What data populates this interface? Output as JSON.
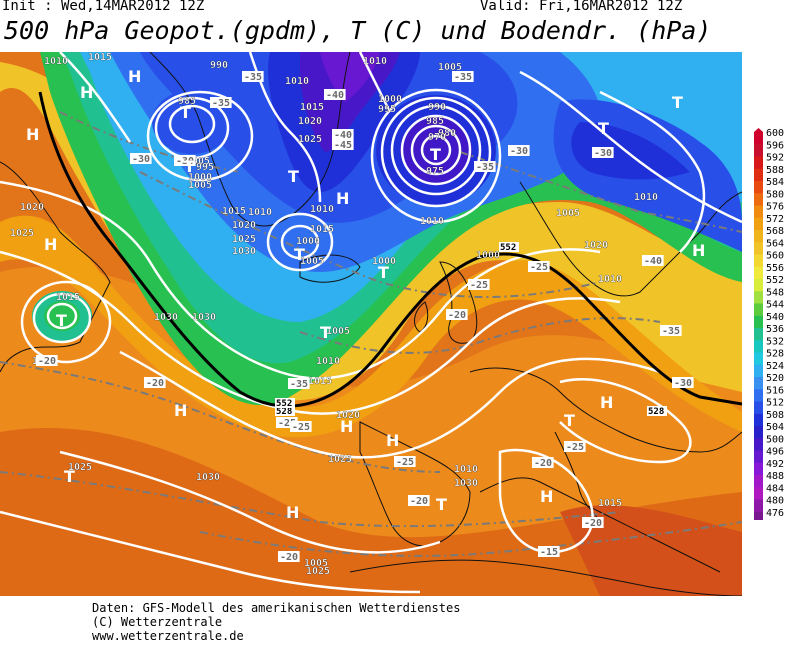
{
  "header": {
    "init": "Init : Wed,14MAR2012 12Z",
    "valid": "Valid: Fri,16MAR2012 12Z",
    "title": "500 hPa Geopot.(gpdm), T (C) und Bodendr. (hPa)"
  },
  "legend": {
    "levels": [
      "600",
      "596",
      "592",
      "588",
      "584",
      "580",
      "576",
      "572",
      "568",
      "564",
      "560",
      "556",
      "552",
      "548",
      "544",
      "540",
      "536",
      "532",
      "528",
      "524",
      "520",
      "516",
      "512",
      "508",
      "504",
      "500",
      "496",
      "492",
      "488",
      "484",
      "480",
      "476"
    ],
    "colors": [
      "#d0002c",
      "#c8102e",
      "#d81818",
      "#e02e12",
      "#e84a10",
      "#ee6a10",
      "#f08a10",
      "#f0a010",
      "#f0b41c",
      "#f0c428",
      "#f2d830",
      "#f0ea3c",
      "#d8ec3c",
      "#a0e040",
      "#5ccc3c",
      "#28c050",
      "#20c090",
      "#18c8c0",
      "#20c8e0",
      "#30b0f0",
      "#3890f0",
      "#3070f0",
      "#2850e8",
      "#2030d8",
      "#2820c8",
      "#4818c8",
      "#6818d0",
      "#8818d8",
      "#a018c8",
      "#b018c0",
      "#9018a8",
      "#7a1890"
    ]
  },
  "pressure_labels": [
    "1010",
    "1015",
    "990",
    "985",
    "1010",
    "1015",
    "1020",
    "1025",
    "1010",
    "1005",
    "1000",
    "995",
    "990",
    "985",
    "980",
    "975",
    "970",
    "1005",
    "1000",
    "1005",
    "1010",
    "1015",
    "1020",
    "1025",
    "1030",
    "995",
    "1000",
    "1005",
    "1010",
    "1015",
    "1010",
    "1020",
    "1025",
    "1015",
    "1030",
    "1025",
    "1030",
    "1025",
    "1030",
    "1025",
    "1030",
    "1010",
    "1020",
    "1005",
    "1010",
    "1000",
    "1000",
    "1005",
    "1015",
    "1010",
    "1015",
    "1020",
    "1025",
    "1005",
    "1010"
  ],
  "temperature_labels": [
    "-30",
    "-35",
    "-35",
    "-30",
    "-40",
    "-40",
    "-45",
    "-35",
    "-30",
    "-30",
    "-25",
    "-35",
    "-25",
    "-40",
    "-20",
    "-25",
    "-35",
    "-20",
    "-20",
    "-30",
    "-25",
    "-20",
    "-25",
    "-20",
    "-15",
    "-20",
    "-20",
    "-35",
    "-25"
  ],
  "height_labels": [
    "552",
    "528",
    "528",
    "552"
  ],
  "pressure_centers": [
    "H",
    "H",
    "H",
    "H",
    "T",
    "T",
    "T",
    "T",
    "T",
    "T",
    "H",
    "T",
    "H",
    "H",
    "H",
    "T",
    "T",
    "T",
    "T",
    "T",
    "H",
    "T",
    "H",
    "H",
    "H"
  ],
  "footer": {
    "line1": "Daten: GFS-Modell des amerikanischen Wetterdienstes",
    "line2": "(C) Wetterzentrale",
    "line3": "www.wetterzentrale.de"
  }
}
